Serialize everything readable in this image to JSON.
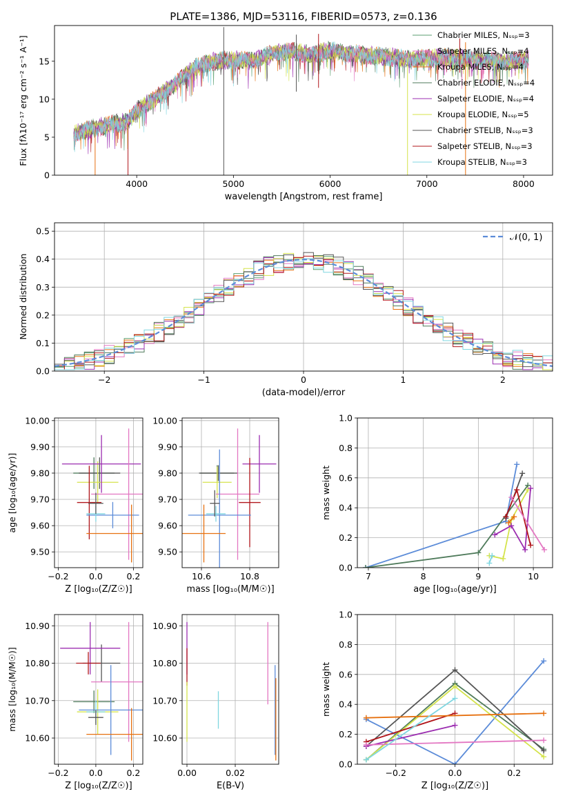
{
  "title": "PLATE=1386, MJD=53116, FIBERID=0573, z=0.136",
  "colors": [
    "#5a9e6f",
    "#e377c2",
    "#e6700f",
    "#4e7a5a",
    "#9b2db0",
    "#d4e34a",
    "#555555",
    "#b0151a",
    "#7fd6e0"
  ],
  "chart_data": [
    {
      "id": "spectrum",
      "type": "line",
      "xlabel": "wavelength [Angstrom, rest frame]",
      "ylabel": "Flux [fλ10⁻¹⁷ erg cm⁻² s⁻¹ A⁻¹]",
      "xlim": [
        3150,
        8300
      ],
      "ylim": [
        0,
        19.7
      ],
      "xticks": [
        4000,
        5000,
        6000,
        7000,
        8000
      ],
      "yticks": [
        0,
        5,
        10,
        15
      ],
      "grid": false,
      "legend_position": "upper-right",
      "legend": [
        "Chabrier MILES, Nₛₛₚ=3",
        "Salpeter MILES, Nₛₛₚ=4",
        "Kroupa MILES, Nₛₛₚ=4",
        "Chabrier ELODIE, Nₛₛₚ=4",
        "Salpeter ELODIE, Nₛₛₚ=4",
        "Kroupa ELODIE, Nₛₛₚ=5",
        "Chabrier STELIB, Nₛₛₚ=3",
        "Salpeter STELIB, Nₛₛₚ=3",
        "Kroupa STELIB, Nₛₛₚ=3"
      ],
      "legend_colors": [
        "#5a9e6f",
        "#e377c2",
        "#e6700f",
        "#4e7a5a",
        "#9b2db0",
        "#d4e34a",
        "#555555",
        "#b0151a",
        "#7fd6e0"
      ],
      "continuum": [
        [
          3350,
          5.5
        ],
        [
          3500,
          6.0
        ],
        [
          3700,
          6.6
        ],
        [
          3900,
          7.0
        ],
        [
          4000,
          8.5
        ],
        [
          4200,
          10.2
        ],
        [
          4400,
          12.0
        ],
        [
          4600,
          14.2
        ],
        [
          4800,
          15.0
        ],
        [
          5000,
          15.2
        ],
        [
          5200,
          15.0
        ],
        [
          5400,
          16.0
        ],
        [
          5600,
          16.3
        ],
        [
          5800,
          15.9
        ],
        [
          6000,
          16.4
        ],
        [
          6200,
          16.0
        ],
        [
          6500,
          15.7
        ],
        [
          6800,
          15.3
        ],
        [
          7000,
          15.4
        ],
        [
          7200,
          15.5
        ],
        [
          7500,
          15.2
        ],
        [
          7800,
          15.0
        ],
        [
          8050,
          15.3
        ]
      ],
      "x_range": [
        3350,
        8050
      ],
      "spikes": [
        [
          4900,
          0,
          19.5
        ],
        [
          5650,
          11.0,
          18.5
        ],
        [
          5880,
          11.5,
          18.6
        ],
        [
          6800,
          0,
          15.5
        ],
        [
          7400,
          0,
          17.5
        ],
        [
          3570,
          0,
          6.0
        ],
        [
          3910,
          0,
          6.8
        ],
        [
          7340,
          13.5,
          18.0
        ]
      ]
    },
    {
      "id": "residuals",
      "type": "histogram",
      "xlabel": "(data-model)/error",
      "ylabel": "Normed distribution",
      "xlim": [
        -2.5,
        2.5
      ],
      "ylim": [
        0,
        0.53
      ],
      "xticks": [
        -2,
        -1,
        0,
        1,
        2
      ],
      "yticks": [
        0.0,
        0.1,
        0.2,
        0.3,
        0.4,
        0.5
      ],
      "grid": true,
      "bin_width": 0.1,
      "legend": [
        "𝒩(0, 1)"
      ],
      "legend_position": "upper-right",
      "curve_color": "#5b8bd8"
    },
    {
      "id": "age-vs-Z",
      "type": "scatter",
      "xlabel": "Z [log₁₀(Z/Z☉)]",
      "ylabel": "age  [log₁₀(age/yr)]",
      "xlim": [
        -0.22,
        0.25
      ],
      "ylim": [
        9.44,
        10.01
      ],
      "xticks": [
        -0.2,
        0.0,
        0.2
      ],
      "yticks": [
        9.5,
        9.6,
        9.7,
        9.8,
        9.9,
        10.0
      ],
      "grid": true,
      "points": [
        {
          "x": -0.01,
          "y": 9.8,
          "xerr": 0.11,
          "yerr": 0.06,
          "color": "#4e7a5a"
        },
        {
          "x": 0.02,
          "y": 9.8,
          "xerr": 0.11,
          "yerr": 0.06,
          "color": "#555555"
        },
        {
          "x": 0.01,
          "y": 9.765,
          "xerr": 0.11,
          "yerr": 0.08,
          "color": "#d4e34a"
        },
        {
          "x": 0.03,
          "y": 9.835,
          "xerr": 0.21,
          "yerr": 0.11,
          "color": "#9b2db0"
        },
        {
          "x": 0.175,
          "y": 9.72,
          "xerr": 0.2,
          "yerr": 0.25,
          "color": "#e377c2"
        },
        {
          "x": -0.035,
          "y": 9.688,
          "xerr": 0.065,
          "yerr": 0.14,
          "color": "#b0151a"
        },
        {
          "x": 0.09,
          "y": 9.64,
          "xerr": 0.14,
          "yerr": 0.05,
          "color": "#5b8bd8"
        },
        {
          "x": 0.0,
          "y": 9.645,
          "xerr": 0.05,
          "yerr": 0.03,
          "color": "#7fd6e0"
        },
        {
          "x": 0.19,
          "y": 9.57,
          "xerr": 0.24,
          "yerr": 0.11,
          "color": "#e6700f"
        },
        {
          "x": 0.0,
          "y": 9.685,
          "xerr": 0.04,
          "yerr": 0.04,
          "color": "#555555"
        }
      ]
    },
    {
      "id": "age-vs-mass",
      "type": "scatter",
      "xlabel": "mass [log₁₀(M/M☉)]",
      "ylabel": "",
      "xlim": [
        10.52,
        10.92
      ],
      "ylim": [
        9.44,
        10.01
      ],
      "xticks": [
        10.6,
        10.8
      ],
      "yticks": [
        9.5,
        9.6,
        9.7,
        9.8,
        9.9,
        10.0
      ],
      "grid": true,
      "points": [
        {
          "x": 10.665,
          "y": 9.8,
          "xerr": 0.07,
          "yerr": 0.03,
          "color": "#4e7a5a"
        },
        {
          "x": 10.67,
          "y": 9.8,
          "xerr": 0.08,
          "yerr": 0.03,
          "color": "#555555"
        },
        {
          "x": 10.665,
          "y": 9.765,
          "xerr": 0.06,
          "yerr": 0.06,
          "color": "#d4e34a"
        },
        {
          "x": 10.84,
          "y": 9.835,
          "xerr": 0.07,
          "yerr": 0.11,
          "color": "#9b2db0"
        },
        {
          "x": 10.75,
          "y": 9.72,
          "xerr": 0.09,
          "yerr": 0.25,
          "color": "#e377c2"
        },
        {
          "x": 10.8,
          "y": 9.688,
          "xerr": 0.045,
          "yerr": 0.17,
          "color": "#b0151a"
        },
        {
          "x": 10.675,
          "y": 9.64,
          "xerr": 0.13,
          "yerr": 0.25,
          "color": "#5b8bd8"
        },
        {
          "x": 10.66,
          "y": 9.645,
          "xerr": 0.04,
          "yerr": 0.03,
          "color": "#7fd6e0"
        },
        {
          "x": 10.61,
          "y": 9.57,
          "xerr": 0.09,
          "yerr": 0.11,
          "color": "#e6700f"
        },
        {
          "x": 10.655,
          "y": 9.685,
          "xerr": 0.02,
          "yerr": 0.05,
          "color": "#555555"
        }
      ]
    },
    {
      "id": "weight-vs-age",
      "type": "line",
      "xlabel": "age  [log₁₀(age/yr)]",
      "ylabel": "mass weight",
      "xlim": [
        6.8,
        10.35
      ],
      "ylim": [
        0,
        1.0
      ],
      "xticks": [
        7,
        8,
        9,
        10
      ],
      "yticks": [
        0.0,
        0.2,
        0.4,
        0.6,
        0.8,
        1.0
      ],
      "grid": true,
      "series": [
        {
          "color": "#5b8bd8",
          "x": [
            6.95,
            9.5,
            9.7
          ],
          "y": [
            0.0,
            0.31,
            0.69
          ]
        },
        {
          "color": "#4e7a5a",
          "x": [
            6.95,
            9.0,
            9.9
          ],
          "y": [
            0.0,
            0.1,
            0.55
          ]
        },
        {
          "color": "#555555",
          "x": [
            9.5,
            9.8
          ],
          "y": [
            0.33,
            0.63
          ]
        },
        {
          "color": "#d4e34a",
          "x": [
            9.2,
            9.45,
            9.6,
            9.9
          ],
          "y": [
            0.08,
            0.06,
            0.32,
            0.52
          ]
        },
        {
          "color": "#9b2db0",
          "x": [
            9.3,
            9.6,
            9.85,
            9.95
          ],
          "y": [
            0.22,
            0.28,
            0.12,
            0.53
          ]
        },
        {
          "color": "#b0151a",
          "x": [
            9.5,
            9.7,
            9.95
          ],
          "y": [
            0.34,
            0.52,
            0.15
          ]
        },
        {
          "color": "#e377c2",
          "x": [
            9.6,
            10.2
          ],
          "y": [
            0.47,
            0.12
          ]
        },
        {
          "color": "#e6700f",
          "x": [
            9.55,
            9.65
          ],
          "y": [
            0.3,
            0.34
          ]
        },
        {
          "color": "#7fd6e0",
          "x": [
            9.2,
            9.25
          ],
          "y": [
            0.03,
            0.08
          ]
        }
      ]
    },
    {
      "id": "mass-vs-Z",
      "type": "scatter",
      "xlabel": "Z [log₁₀(Z/Z☉)]",
      "ylabel": "mass [log₁₀(M/M☉)]",
      "xlim": [
        -0.22,
        0.25
      ],
      "ylim": [
        10.53,
        10.93
      ],
      "xticks": [
        -0.2,
        0.0,
        0.2
      ],
      "yticks": [
        10.6,
        10.7,
        10.8,
        10.9
      ],
      "grid": true,
      "points": [
        {
          "x": -0.01,
          "y": 10.697,
          "xerr": 0.11,
          "yerr": 0.03,
          "color": "#4e7a5a"
        },
        {
          "x": 0.03,
          "y": 10.8,
          "xerr": 0.1,
          "yerr": 0.05,
          "color": "#555555"
        },
        {
          "x": 0.01,
          "y": 10.67,
          "xerr": 0.11,
          "yerr": 0.06,
          "color": "#d4e34a"
        },
        {
          "x": -0.03,
          "y": 10.84,
          "xerr": 0.16,
          "yerr": 0.07,
          "color": "#9b2db0"
        },
        {
          "x": 0.175,
          "y": 10.75,
          "xerr": 0.2,
          "yerr": 0.16,
          "color": "#e377c2"
        },
        {
          "x": -0.04,
          "y": 10.8,
          "xerr": 0.065,
          "yerr": 0.03,
          "color": "#b0151a"
        },
        {
          "x": 0.08,
          "y": 10.675,
          "xerr": 0.17,
          "yerr": 0.12,
          "color": "#5b8bd8"
        },
        {
          "x": 0.0,
          "y": 10.67,
          "xerr": 0.05,
          "yerr": 0.03,
          "color": "#7fd6e0"
        },
        {
          "x": 0.19,
          "y": 10.61,
          "xerr": 0.24,
          "yerr": 0.07,
          "color": "#e6700f"
        },
        {
          "x": 0.0,
          "y": 10.655,
          "xerr": 0.04,
          "yerr": 0.02,
          "color": "#555555"
        }
      ]
    },
    {
      "id": "mass-vs-ebv",
      "type": "scatter",
      "xlabel": "E(B-V)",
      "ylabel": "",
      "xlim": [
        -0.002,
        0.038
      ],
      "ylim": [
        10.53,
        10.93
      ],
      "xticks": [
        0.0,
        0.02
      ],
      "yticks": [
        10.6,
        10.7,
        10.8,
        10.9
      ],
      "grid": true,
      "points": [
        {
          "x": 0.0,
          "y": 10.84,
          "xerr": 0,
          "yerr": 0.07,
          "color": "#9b2db0"
        },
        {
          "x": 0.0,
          "y": 10.79,
          "xerr": 0,
          "yerr": 0.05,
          "color": "#b0151a"
        },
        {
          "x": 0.0,
          "y": 10.67,
          "xerr": 0,
          "yerr": 0.08,
          "color": "#d4e34a"
        },
        {
          "x": 0.013,
          "y": 10.675,
          "xerr": 0,
          "yerr": 0.05,
          "color": "#7fd6e0"
        },
        {
          "x": 0.0335,
          "y": 10.8,
          "xerr": 0,
          "yerr": 0.11,
          "color": "#e377c2"
        },
        {
          "x": 0.0365,
          "y": 10.675,
          "xerr": 0,
          "yerr": 0.12,
          "color": "#5b8bd8"
        },
        {
          "x": 0.0368,
          "y": 10.65,
          "xerr": 0,
          "yerr": 0.11,
          "color": "#e6700f"
        }
      ]
    },
    {
      "id": "weight-vs-Z",
      "type": "line",
      "xlabel": "Z [log₁₀(Z/Z☉)]",
      "ylabel": "mass weight",
      "xlim": [
        -0.33,
        0.33
      ],
      "ylim": [
        0,
        1.0
      ],
      "xticks": [
        -0.2,
        0.0,
        0.2
      ],
      "yticks": [
        0.0,
        0.2,
        0.4,
        0.6,
        0.8,
        1.0
      ],
      "grid": true,
      "series": [
        {
          "color": "#5b8bd8",
          "x": [
            -0.3,
            0.0,
            0.3
          ],
          "y": [
            0.3,
            0.0,
            0.69
          ]
        },
        {
          "color": "#4e7a5a",
          "x": [
            -0.3,
            0.0,
            0.3
          ],
          "y": [
            0.03,
            0.54,
            0.1
          ]
        },
        {
          "color": "#555555",
          "x": [
            -0.3,
            0.0,
            0.3
          ],
          "y": [
            0.12,
            0.63,
            0.09
          ]
        },
        {
          "color": "#d4e34a",
          "x": [
            -0.3,
            0.0,
            0.3
          ],
          "y": [
            0.03,
            0.52,
            0.05
          ]
        },
        {
          "color": "#9b2db0",
          "x": [
            -0.3,
            0.0
          ],
          "y": [
            0.12,
            0.26
          ]
        },
        {
          "color": "#b0151a",
          "x": [
            -0.3,
            0.0
          ],
          "y": [
            0.15,
            0.34
          ]
        },
        {
          "color": "#e377c2",
          "x": [
            -0.3,
            0.3
          ],
          "y": [
            0.13,
            0.16
          ]
        },
        {
          "color": "#e6700f",
          "x": [
            -0.3,
            0.3
          ],
          "y": [
            0.31,
            0.34
          ]
        },
        {
          "color": "#7fd6e0",
          "x": [
            -0.3,
            0.0
          ],
          "y": [
            0.03,
            0.44
          ]
        }
      ]
    }
  ]
}
